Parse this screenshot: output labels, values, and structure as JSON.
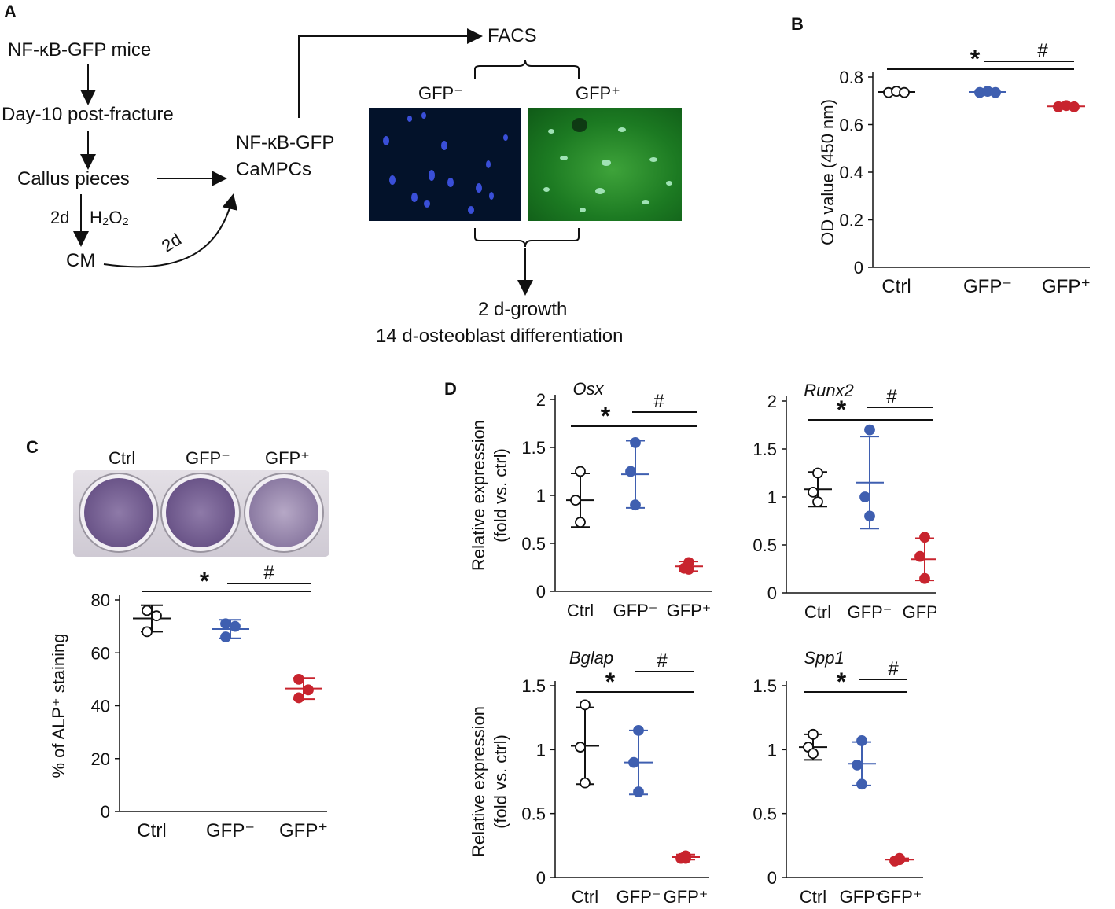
{
  "panels": {
    "a": "A",
    "b": "B",
    "c": "C",
    "d": "D"
  },
  "flow": {
    "step1": "NF-κB-GFP mice",
    "step2": "Day-10 post-fracture",
    "step3": "Callus pieces",
    "treat_days": "2d",
    "treat_agent": "H₂O₂",
    "cm": "CM",
    "cm_days": "2d",
    "cells": [
      "NF-κB-GFP",
      "CaMPCs"
    ],
    "facs": "FACS",
    "gfp_neg": "GFP⁻",
    "gfp_pos": "GFP⁺",
    "growth": "2 d-growth",
    "diff": "14 d-osteoblast differentiation"
  },
  "colors": {
    "ctrl": "#111111",
    "gfp_neg": "#3f5fb0",
    "gfp_pos": "#c8242e"
  },
  "plate_labels": [
    "Ctrl",
    "GFP⁻",
    "GFP⁺"
  ],
  "chart_data": [
    {
      "id": "B",
      "type": "scatter",
      "ylabel": "OD value (450 nm)",
      "ylim": [
        0,
        0.8
      ],
      "yticks": [
        "0",
        "0.2",
        "0.4",
        "0.6",
        "0.8"
      ],
      "categories": [
        "Ctrl",
        "GFP⁻",
        "GFP⁺"
      ],
      "points": [
        [
          0.735,
          0.74,
          0.735
        ],
        [
          0.735,
          0.74,
          0.735
        ],
        [
          0.675,
          0.68,
          0.675
        ]
      ],
      "means": [
        0.737,
        0.737,
        0.677
      ],
      "sd": [
        0.004,
        0.004,
        0.004
      ],
      "sig": {
        "star": "*",
        "hash": "#"
      }
    },
    {
      "id": "C",
      "type": "scatter",
      "ylabel": "% of ALP⁺ staining",
      "ylim": [
        0,
        80
      ],
      "yticks": [
        "0",
        "20",
        "40",
        "60",
        "80"
      ],
      "categories": [
        "Ctrl",
        "GFP⁻",
        "GFP⁺"
      ],
      "points": [
        [
          76,
          68,
          74
        ],
        [
          71,
          66,
          70
        ],
        [
          50,
          43,
          46
        ]
      ],
      "means": [
        73,
        69,
        46.5
      ],
      "sd": [
        5,
        3.5,
        4
      ],
      "sig": {
        "star": "*",
        "hash": "#"
      }
    },
    {
      "id": "D-Osx",
      "type": "scatter",
      "title": "Osx",
      "ylabel": "Relative expression\n(fold vs. ctrl)",
      "ylim": [
        0,
        2
      ],
      "yticks": [
        "0",
        "0.5",
        "1",
        "1.5",
        "2"
      ],
      "categories": [
        "Ctrl",
        "GFP⁻",
        "GFP⁺"
      ],
      "points": [
        [
          1.25,
          0.95,
          0.72
        ],
        [
          1.55,
          1.25,
          0.9
        ],
        [
          0.3,
          0.24,
          0.23
        ]
      ],
      "means": [
        0.95,
        1.22,
        0.26
      ],
      "sd": [
        0.28,
        0.35,
        0.05
      ],
      "sig": {
        "star": "*",
        "hash": "#"
      }
    },
    {
      "id": "D-Runx2",
      "type": "scatter",
      "title": "Runx2",
      "ylabel": "",
      "ylim": [
        0,
        2
      ],
      "yticks": [
        "0",
        "0.5",
        "1",
        "1.5",
        "2"
      ],
      "categories": [
        "Ctrl",
        "GFP⁻",
        "GFP⁺"
      ],
      "points": [
        [
          1.25,
          1.05,
          0.95
        ],
        [
          1.7,
          1.0,
          0.8
        ],
        [
          0.58,
          0.38,
          0.15
        ]
      ],
      "means": [
        1.08,
        1.15,
        0.35
      ],
      "sd": [
        0.18,
        0.48,
        0.22
      ],
      "sig": {
        "star": "*",
        "hash": "#"
      }
    },
    {
      "id": "D-Bglap",
      "type": "scatter",
      "title": "Bglap",
      "ylabel": "Relative expression\n(fold vs. ctrl)",
      "ylim": [
        0,
        1.5
      ],
      "yticks": [
        "0",
        "0.5",
        "1",
        "1.5"
      ],
      "categories": [
        "Ctrl",
        "GFP⁻",
        "GFP⁺"
      ],
      "points": [
        [
          1.35,
          1.02,
          0.74
        ],
        [
          1.15,
          0.9,
          0.67
        ],
        [
          0.17,
          0.15,
          0.15
        ]
      ],
      "means": [
        1.03,
        0.9,
        0.16
      ],
      "sd": [
        0.3,
        0.25,
        0.02
      ],
      "sig": {
        "star": "*",
        "hash": "#"
      }
    },
    {
      "id": "D-Spp1",
      "type": "scatter",
      "title": "Spp1",
      "ylabel": "",
      "ylim": [
        0,
        1.5
      ],
      "yticks": [
        "0",
        "0.5",
        "1",
        "1.5"
      ],
      "categories": [
        "Ctrl",
        "GFP⁻",
        "GFP⁺"
      ],
      "points": [
        [
          1.12,
          1.02,
          0.97
        ],
        [
          1.07,
          0.88,
          0.73
        ],
        [
          0.15,
          0.13,
          0.14
        ]
      ],
      "means": [
        1.02,
        0.89,
        0.14
      ],
      "sd": [
        0.1,
        0.17,
        0.01
      ],
      "sig": {
        "star": "*",
        "hash": "#"
      }
    }
  ]
}
